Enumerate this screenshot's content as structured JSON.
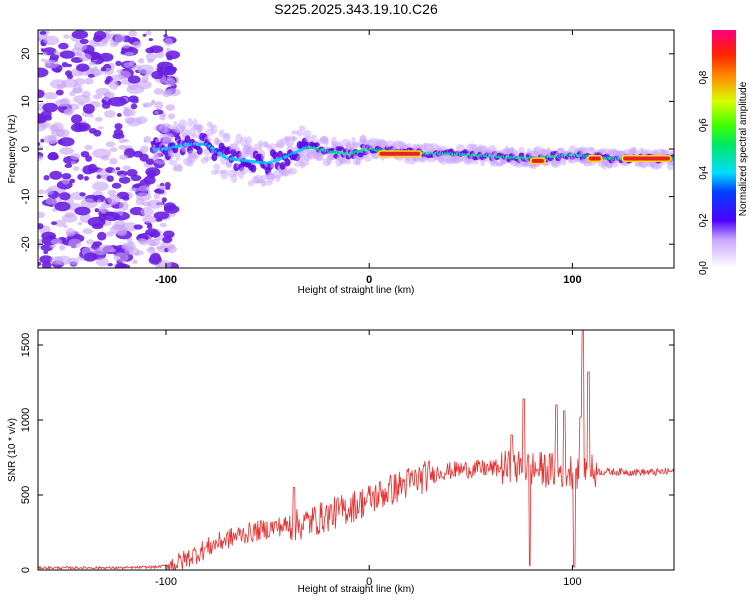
{
  "title": "S225.2025.343.19.10.C26",
  "chart_data": [
    {
      "type": "heatmap",
      "name": "spectrogram",
      "xlabel": "Height of straight line (km)",
      "ylabel": "Frequency (Hz)",
      "xlim": [
        -163,
        150
      ],
      "ylim": [
        -25,
        25
      ],
      "xticks": [
        -100,
        0,
        100
      ],
      "yticks": [
        20,
        10,
        0,
        -10,
        -20
      ],
      "colorbar": {
        "label": "Normalized spectral amplitude",
        "range": [
          0,
          1
        ],
        "ticks": [
          0.0,
          0.2,
          0.4,
          0.6,
          0.8
        ],
        "tick_labels": [
          "0.0",
          "0.2",
          "0.4",
          "0.6",
          "0.8"
        ]
      },
      "ridge": [
        {
          "x": -100,
          "f": 0.0
        },
        {
          "x": -90,
          "f": 1.0
        },
        {
          "x": -80,
          "f": 1.0
        },
        {
          "x": -70,
          "f": -2.0
        },
        {
          "x": -60,
          "f": -2.5
        },
        {
          "x": -50,
          "f": -3.0
        },
        {
          "x": -40,
          "f": -1.5
        },
        {
          "x": -30,
          "f": 0.5
        },
        {
          "x": -20,
          "f": -0.5
        },
        {
          "x": -10,
          "f": -1.0
        },
        {
          "x": 0,
          "f": 0.0
        },
        {
          "x": 20,
          "f": -0.8
        },
        {
          "x": 40,
          "f": -1.0
        },
        {
          "x": 60,
          "f": -1.5
        },
        {
          "x": 80,
          "f": -2.0
        },
        {
          "x": 100,
          "f": -1.2
        },
        {
          "x": 120,
          "f": -2.0
        },
        {
          "x": 150,
          "f": -2.0
        }
      ],
      "high_amplitude_segments": [
        {
          "x_start": 5,
          "x_end": 25,
          "f": -1.0
        },
        {
          "x_start": 80,
          "x_end": 86,
          "f": -2.5
        },
        {
          "x_start": 108,
          "x_end": 114,
          "f": -2.0
        },
        {
          "x_start": 125,
          "x_end": 148,
          "f": -2.0
        }
      ]
    },
    {
      "type": "line",
      "name": "snr",
      "xlabel": "Height of straight line (km)",
      "ylabel": "SNR (10 * v/v)",
      "xlim": [
        -163,
        150
      ],
      "ylim": [
        0,
        1600
      ],
      "xticks": [
        -100,
        0,
        100
      ],
      "yticks": [
        0,
        500,
        1000,
        1500
      ],
      "color": "#e83030",
      "series": [
        {
          "name": "SNR",
          "x": [
            -163,
            -140,
            -120,
            -105,
            -95,
            -85,
            -75,
            -65,
            -55,
            -45,
            -35,
            -25,
            -15,
            -5,
            5,
            15,
            25,
            35,
            45,
            55,
            65,
            75,
            85,
            95,
            105,
            115,
            125,
            140,
            150
          ],
          "values": [
            15,
            15,
            15,
            20,
            40,
            110,
            180,
            230,
            260,
            290,
            300,
            340,
            390,
            440,
            500,
            560,
            610,
            655,
            670,
            675,
            680,
            680,
            670,
            660,
            660,
            655,
            655,
            650,
            660
          ]
        }
      ],
      "spikes": [
        {
          "x": -37,
          "value": 550
        },
        {
          "x": 70,
          "value": 900
        },
        {
          "x": 76,
          "value": 1140
        },
        {
          "x": 79,
          "value": 30
        },
        {
          "x": 92,
          "value": 1100
        },
        {
          "x": 96,
          "value": 1060
        },
        {
          "x": 104,
          "value": 1020
        },
        {
          "x": 105,
          "value": 1600
        },
        {
          "x": 108,
          "value": 1320
        },
        {
          "x": 101,
          "value": 20
        }
      ]
    }
  ]
}
